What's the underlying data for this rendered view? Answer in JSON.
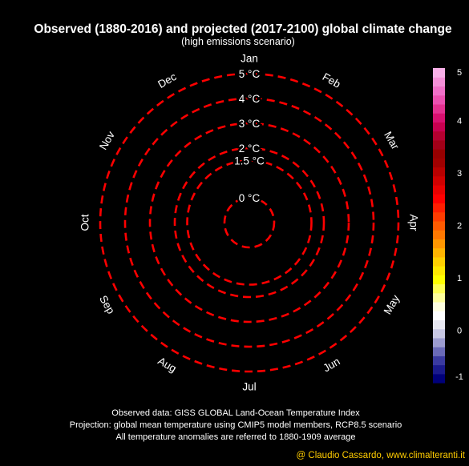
{
  "title": "Observed (1880-2016) and projected (2017-2100) global climate change",
  "subtitle": "(high emissions scenario)",
  "chart_data": {
    "type": "polar",
    "months": [
      "Jan",
      "Feb",
      "Mar",
      "Apr",
      "May",
      "Jun",
      "Jul",
      "Aug",
      "Sep",
      "Oct",
      "Nov",
      "Dec"
    ],
    "rings": [
      {
        "value": 0,
        "label": "0 °C"
      },
      {
        "value": 1.5,
        "label": "1.5 °C"
      },
      {
        "value": 2,
        "label": "2 °C"
      },
      {
        "value": 3,
        "label": "3 °C"
      },
      {
        "value": 4,
        "label": "4 °C"
      },
      {
        "value": 5,
        "label": "5 °C"
      }
    ],
    "ring_color": "#ff0000",
    "colorbar": {
      "min": -1,
      "max": 5,
      "ticks": [
        {
          "value": -1,
          "label": "-1"
        },
        {
          "value": 0,
          "label": "0"
        },
        {
          "value": 1,
          "label": "1"
        },
        {
          "value": 2,
          "label": "2"
        },
        {
          "value": 3,
          "label": "3"
        },
        {
          "value": 4,
          "label": "4"
        },
        {
          "value": 5,
          "label": "5"
        }
      ],
      "colors": [
        "#00007a",
        "#1a1a8c",
        "#3a3aa0",
        "#6a6ab8",
        "#9c9cd0",
        "#c8c8e4",
        "#e8e8f2",
        "#ffffff",
        "#ffffe0",
        "#ffff9c",
        "#ffff55",
        "#ffff00",
        "#ffe800",
        "#ffd000",
        "#ffb400",
        "#ff9600",
        "#ff7800",
        "#ff5a00",
        "#ff3c00",
        "#ff1e00",
        "#ff0000",
        "#e80000",
        "#d00000",
        "#b80000",
        "#a00000",
        "#960000",
        "#a00018",
        "#b40030",
        "#c80050",
        "#d81070",
        "#e43090",
        "#ec50b0",
        "#f070c8",
        "#f490d8",
        "#f8b0e8"
      ]
    }
  },
  "notes": [
    "Observed data: GISS GLOBAL Land-Ocean Temperature Index",
    "Projection: global mean temperature using CMIP5 model members, RCP8.5 scenario",
    "All temperature anomalies are referred to 1880-1909 average"
  ],
  "credit": "@ Claudio Cassardo, www.climalteranti.it"
}
